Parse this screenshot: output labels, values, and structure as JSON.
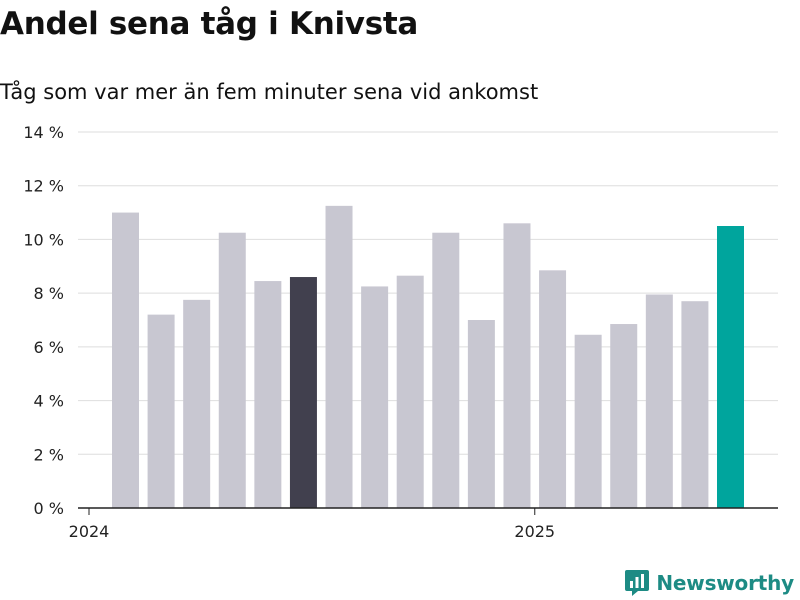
{
  "chart_data": {
    "type": "bar",
    "title": "Andel sena tåg i Knivsta",
    "subtitle": "Tåg som var mer än fem minuter sena vid ankomst",
    "xlabel": "",
    "ylabel": "",
    "ylim": [
      0,
      14
    ],
    "y_ticks": [
      {
        "value": 0,
        "label": "0 %"
      },
      {
        "value": 2,
        "label": "2 %"
      },
      {
        "value": 4,
        "label": "4 %"
      },
      {
        "value": 6,
        "label": "6 %"
      },
      {
        "value": 8,
        "label": "8 %"
      },
      {
        "value": 10,
        "label": "10 %"
      },
      {
        "value": 12,
        "label": "12 %"
      },
      {
        "value": 14,
        "label": "14 %"
      }
    ],
    "x_ticks": [
      {
        "label": "2024",
        "before_bar": 0
      },
      {
        "label": "2025",
        "before_bar": 12
      }
    ],
    "values": [
      11.0,
      7.2,
      7.75,
      10.25,
      8.45,
      8.6,
      11.25,
      8.25,
      8.65,
      10.25,
      7.0,
      10.6,
      8.85,
      6.45,
      6.85,
      7.95,
      7.7,
      10.5
    ],
    "bar_colors": [
      "#c8c7d1",
      "#c8c7d1",
      "#c8c7d1",
      "#c8c7d1",
      "#c8c7d1",
      "#41404e",
      "#c8c7d1",
      "#c8c7d1",
      "#c8c7d1",
      "#c8c7d1",
      "#c8c7d1",
      "#c8c7d1",
      "#c8c7d1",
      "#c8c7d1",
      "#c8c7d1",
      "#c8c7d1",
      "#c8c7d1",
      "#00a59d"
    ],
    "grid": true,
    "legend": "none"
  },
  "brand": {
    "name": "Newsworthy",
    "icon": "bar-chart-logo-icon",
    "color": "#1d8b84"
  }
}
